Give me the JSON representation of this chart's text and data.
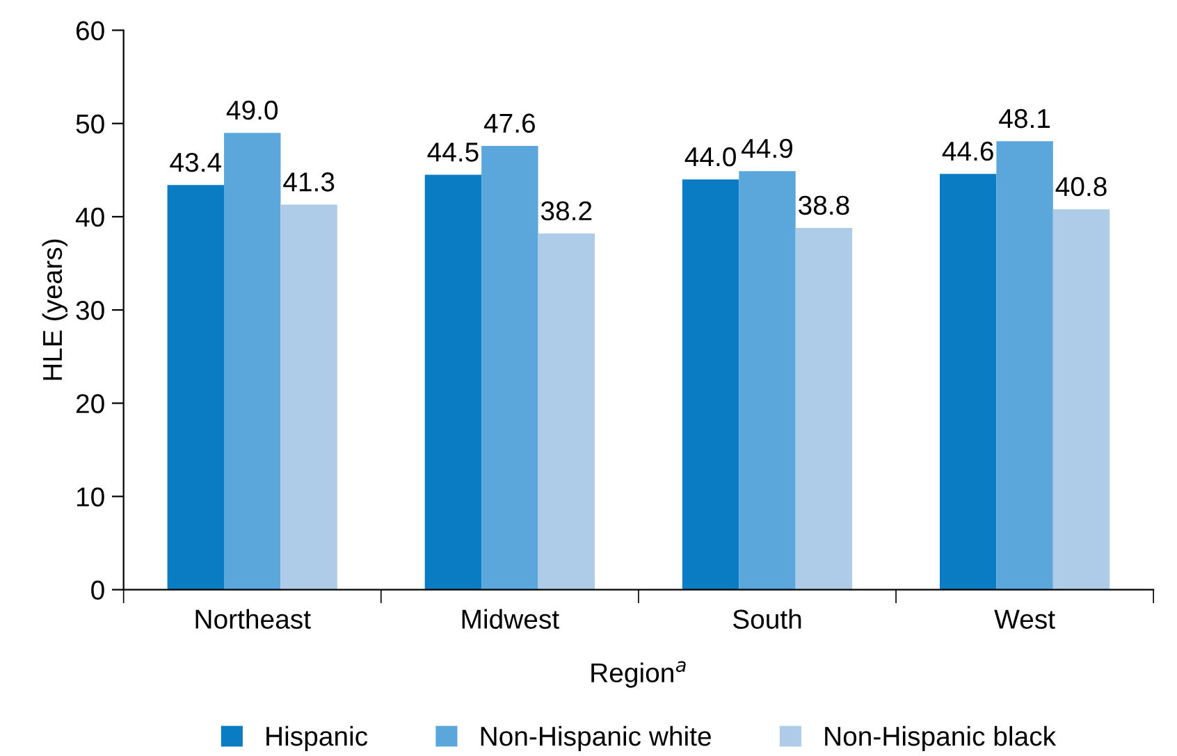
{
  "chart_data": {
    "type": "bar",
    "xlabel": "Region$^{a}$",
    "ylabel": "HLE (years)",
    "categories": [
      "Northeast",
      "Midwest",
      "South",
      "West"
    ],
    "series": [
      {
        "name": "Hispanic",
        "color": "#0a7cc4",
        "values": [
          43.4,
          44.5,
          44.0,
          44.6
        ],
        "value_labels": [
          "43.4",
          "44.5",
          "44.0",
          "44.6"
        ]
      },
      {
        "name": "Non-Hispanic white",
        "color": "#5ba7dc",
        "values": [
          49.0,
          47.6,
          44.9,
          48.1
        ],
        "value_labels": [
          "49.0",
          "47.6",
          "44.9",
          "48.1"
        ]
      },
      {
        "name": "Non-Hispanic black",
        "color": "#aecbe8",
        "values": [
          41.3,
          38.2,
          38.8,
          40.8
        ],
        "value_labels": [
          "41.3",
          "38.2",
          "38.8",
          "40.8"
        ]
      }
    ],
    "ylim": [
      0,
      60
    ],
    "yticks": [
      0,
      10,
      20,
      30,
      40,
      50,
      60
    ],
    "grid": false,
    "legend": "bottom"
  }
}
